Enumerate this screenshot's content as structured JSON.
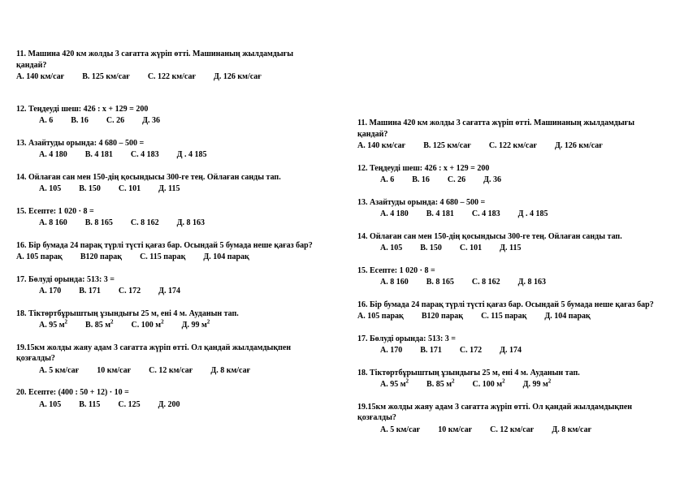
{
  "columns": [
    {
      "side": "left",
      "questions": [
        {
          "num": "11",
          "text": "Машина 420 км жолды  3 сағатта жүріп өтті. Машинаның жылдамдығы қандай?",
          "opts": [
            "A.    140 км/сағ",
            "B.  125 км/сағ",
            "C. 122 км/сағ",
            "Д.  126 км/сағ"
          ],
          "indent": false,
          "gap_after": 26
        },
        {
          "num": "12",
          "text": "Теңдеуді шеш:   426 : x + 129  = 200",
          "opts": [
            "A.  6",
            "B.  16",
            "C.   26",
            "Д. 36"
          ],
          "indent": true
        },
        {
          "num": "13",
          "text": "Азайтуды орында: 4 680 – 500 =",
          "opts": [
            "A.   4 180",
            "B.   4 181",
            "C.    4 183",
            "Д .   4 185"
          ],
          "indent": true
        },
        {
          "num": "14",
          "text": "Ойлаған сан мен 150-дің қосындысы 300-ге тең.  Ойлаған санды тап.",
          "opts": [
            "A.     105",
            "B.  150",
            "C.  101",
            "Д.  115"
          ],
          "indent": true
        },
        {
          "num": "15",
          "text": "Есепте:  1 020 · 8 =",
          "opts": [
            "A.  8 160",
            "B.   8 165",
            "C.   8 162",
            "Д.   8 163"
          ],
          "indent": true
        },
        {
          "num": "16",
          "text": "Бір бумада  24 парақ түрлі түсті қағаз бар. Осындай 5 бумада неше қағаз бар?",
          "opts": [
            "A. 105 парақ",
            "B120 парақ",
            "C.  115 парақ",
            "Д.   104 парақ"
          ],
          "indent": false
        },
        {
          "num": "17",
          "text": "Бөлуді орында: 513: 3 =",
          "opts": [
            "A. 170",
            "B.   171",
            "C.  172",
            "Д.   174"
          ],
          "indent": true
        },
        {
          "num": "18",
          "text": "Тіктөртбұрыштың  ұзындығы 25 м, ені  4 м. Ауданын  тап.",
          "opts": [
            "A.    95 м<sup>2</sup>",
            "B.    85 м<sup>2</sup>",
            "C.  100 м<sup>2</sup>",
            "Д.  99 м<sup>2</sup>"
          ],
          "indent": true,
          "html": true
        },
        {
          "num": "19",
          "text": "15км  жолды жаяу адам 3 сағатта жүріп өтті.  Ол қандай жылдамдықпен қозғалды?",
          "opts": [
            "A.  5 км/сағ",
            "10 км/сағ",
            "C.  12 км/сағ",
            "Д.  8 км/сағ"
          ],
          "indent": true
        },
        {
          "num": "20",
          "text": "Есепте:  (400 : 50 + 12)  · 10 =",
          "opts": [
            "A. 105",
            "B. 115",
            "C.  125",
            "Д.  200"
          ],
          "indent": true
        }
      ]
    },
    {
      "side": "right",
      "questions": [
        {
          "num": "11",
          "text": "Машина 420 км жолды  3 сағатта жүріп өтті. Машинаның жылдамдығы қандай?",
          "opts": [
            "A.    140 км/сағ",
            "B.  125 км/сағ",
            "C. 122 км/сағ",
            "Д.  126 км/сағ"
          ],
          "indent": false
        },
        {
          "num": "12",
          "text": "Теңдеуді шеш:   426 : x + 129  = 200",
          "opts": [
            "A.  6",
            "B.  16",
            "C.   26",
            "Д. 36"
          ],
          "indent": true
        },
        {
          "num": "13",
          "text": "Азайтуды орында: 4 680 – 500 =",
          "opts": [
            "A.   4 180",
            "B.   4 181",
            "C.    4 183",
            "Д .   4 185"
          ],
          "indent": true
        },
        {
          "num": "14",
          "text": "Ойлаған сан мен 150-дің қосындысы 300-ге тең.  Ойлаған санды тап.",
          "opts": [
            "A.     105",
            "B.  150",
            "C.  101",
            "Д.  115"
          ],
          "indent": true
        },
        {
          "num": "15",
          "text": "Есепте:  1 020 · 8 =",
          "opts": [
            "A.  8 160",
            "B.   8 165",
            "C.   8 162",
            "Д.   8 163"
          ],
          "indent": true
        },
        {
          "num": "16",
          "text": "Бір бумада  24 парақ түрлі түсті қағаз бар. Осындай 5 бумада неше қағаз бар?",
          "opts": [
            "A. 105 парақ",
            "B120 парақ",
            "C.  115 парақ",
            "Д.   104 парақ"
          ],
          "indent": false
        },
        {
          "num": "17",
          "text": "Бөлуді орында: 513: 3 =",
          "opts": [
            "A. 170",
            "B.   171",
            "C.  172",
            "Д.   174"
          ],
          "indent": true
        },
        {
          "num": "18",
          "text": "Тіктөртбұрыштың  ұзындығы 25 м, ені  4 м. Ауданын  тап.",
          "opts": [
            "A.    95 м<sup>2</sup>",
            "B.    85 м<sup>2</sup>",
            "C.  100 м<sup>2</sup>",
            "Д.  99 м<sup>2</sup>"
          ],
          "indent": true,
          "html": true
        },
        {
          "num": "19",
          "text": "15км  жолды жаяу адам 3 сағатта жүріп өтті.  Ол қандай жылдамдықпен қозғалды?",
          "opts": [
            "A.  5 км/сағ",
            "10 км/сағ",
            "C.  12 км/сағ",
            "Д.  8 км/сағ"
          ],
          "indent": true
        }
      ]
    }
  ]
}
